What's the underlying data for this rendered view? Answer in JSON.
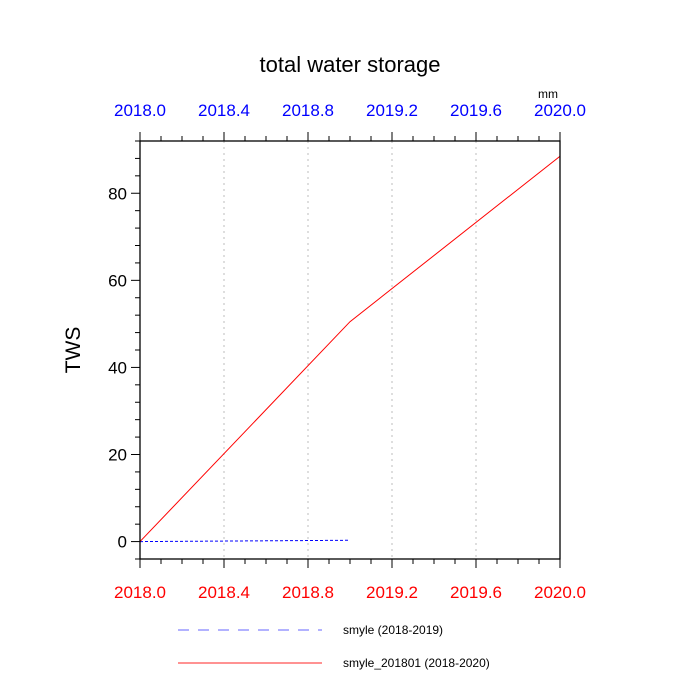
{
  "chart_data": {
    "type": "line",
    "title": "total water storage",
    "ylabel": "TWS",
    "units_label": "mm",
    "xlim": [
      2018.0,
      2020.0
    ],
    "ylim": [
      -4,
      92
    ],
    "x_ticks": [
      "2018.0",
      "2018.4",
      "2018.8",
      "2019.2",
      "2019.6",
      "2020.0"
    ],
    "x_tick_values": [
      2018.0,
      2018.4,
      2018.8,
      2019.2,
      2019.6,
      2020.0
    ],
    "y_ticks": [
      "0",
      "20",
      "40",
      "60",
      "80"
    ],
    "y_tick_values": [
      0,
      20,
      40,
      60,
      80
    ],
    "grid": "vertical dotted at x ticks",
    "legend_position": "bottom",
    "top_axis_color": "#0000ff",
    "bottom_axis_color": "#ff0000",
    "series": [
      {
        "name": "smyle (2018-2019)",
        "color": "#0000ff",
        "style": "dashed",
        "x": [
          2018.0,
          2019.0
        ],
        "y": [
          0.0,
          0.3
        ]
      },
      {
        "name": "smyle_201801 (2018-2020)",
        "color": "#ff0000",
        "style": "solid",
        "x": [
          2018.0,
          2019.0,
          2020.0
        ],
        "y": [
          0.0,
          50.5,
          88.5
        ]
      }
    ]
  }
}
